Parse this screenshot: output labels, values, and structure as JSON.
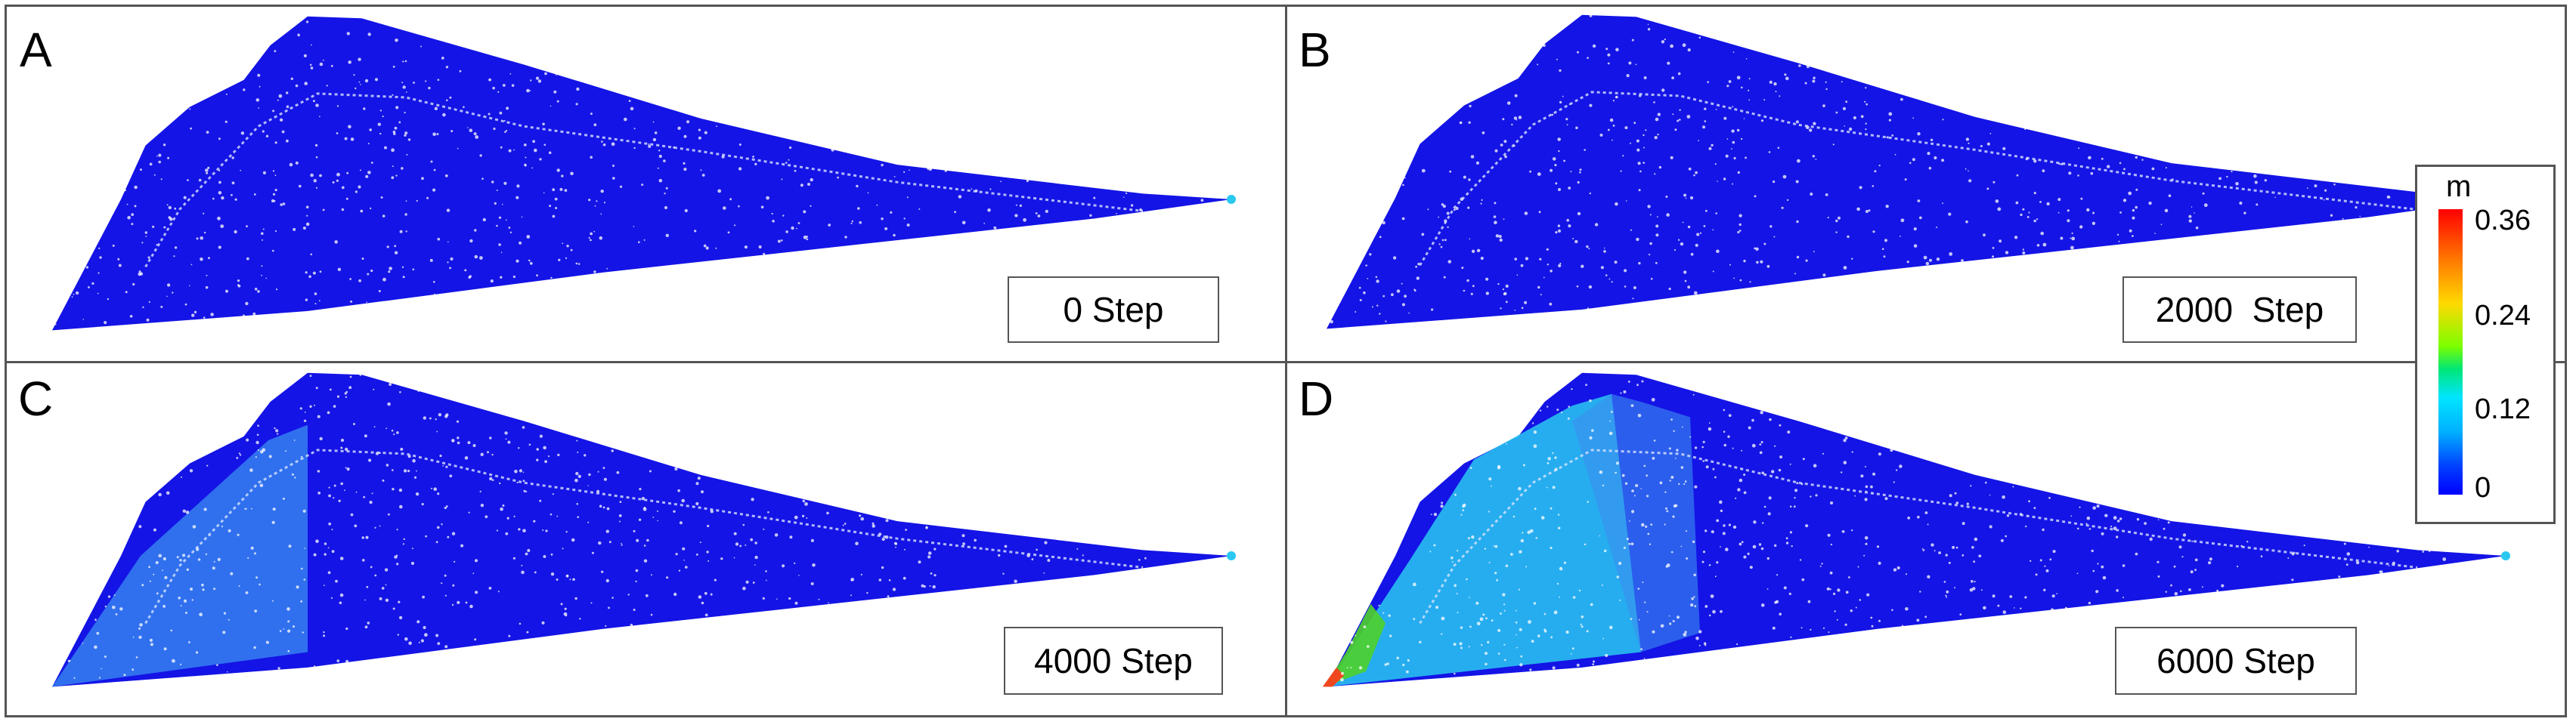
{
  "figure": {
    "panels": [
      {
        "letter": "A",
        "step_label": "0 Step",
        "stage": 0
      },
      {
        "letter": "B",
        "step_label": "2000  Step",
        "stage": 1
      },
      {
        "letter": "C",
        "step_label": "4000 Step",
        "stage": 2
      },
      {
        "letter": "D",
        "step_label": "6000 Step",
        "stage": 3
      }
    ],
    "colorbar": {
      "unit": "m",
      "ticks": [
        "0.36",
        "0.24",
        "0.12",
        "0"
      ],
      "range": [
        0,
        0.36
      ]
    },
    "colors": {
      "particle_base": "#1414e6",
      "particle_light": "#3a8ff0",
      "particle_cyan": "#29c8f0",
      "particle_green": "#4fd22a",
      "particle_red": "#f0481e",
      "frame": "#555555"
    }
  }
}
